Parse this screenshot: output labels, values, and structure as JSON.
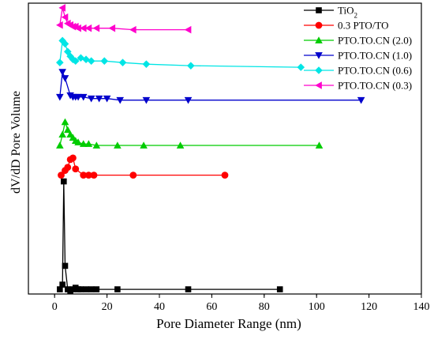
{
  "chart_data": {
    "type": "line",
    "xlabel": "Pore Diameter Range (nm)",
    "ylabel": "dV/dD Pore Volume",
    "xlim": [
      -10,
      140
    ],
    "xticks": [
      0,
      20,
      40,
      60,
      80,
      100,
      120,
      140
    ],
    "yticks": "none",
    "grid": false,
    "legend_position": "top-right",
    "series": [
      {
        "name": "TiO",
        "name_subscript": "2",
        "color": "#000000",
        "marker": "square",
        "x": [
          2,
          3,
          3.5,
          4,
          5,
          6,
          7,
          8,
          9,
          10,
          12,
          14,
          16,
          24,
          51,
          86
        ],
        "y": [
          0.03,
          0.06,
          0.72,
          0.18,
          0.03,
          0.02,
          0.03,
          0.04,
          0.03,
          0.03,
          0.03,
          0.03,
          0.03,
          0.03,
          0.03,
          0.03
        ]
      },
      {
        "name": "0.3 PTO/TO",
        "color": "#ff0000",
        "marker": "circle",
        "x": [
          2.5,
          4,
          5,
          6,
          7,
          8,
          11,
          13,
          15,
          30,
          65
        ],
        "y": [
          0.76,
          0.79,
          0.81,
          0.86,
          0.87,
          0.8,
          0.76,
          0.76,
          0.76,
          0.76,
          0.76
        ]
      },
      {
        "name": "PTO.TO.CN (2.0)",
        "color": "#00cc00",
        "marker": "triangle-up",
        "x": [
          2,
          3,
          4,
          5,
          6,
          7,
          8,
          9,
          11,
          13,
          16,
          24,
          34,
          48,
          101
        ],
        "y": [
          0.95,
          1.02,
          1.1,
          1.05,
          1.02,
          1.0,
          0.98,
          0.97,
          0.96,
          0.96,
          0.95,
          0.95,
          0.95,
          0.95,
          0.95
        ]
      },
      {
        "name": "PTO.TO.CN (1.0)",
        "color": "#0000cc",
        "marker": "triangle-down",
        "x": [
          2,
          3,
          4,
          6,
          7,
          8,
          9,
          11,
          14,
          17,
          20,
          25,
          35,
          51,
          117
        ],
        "y": [
          1.26,
          1.42,
          1.38,
          1.27,
          1.26,
          1.26,
          1.26,
          1.26,
          1.25,
          1.25,
          1.25,
          1.24,
          1.24,
          1.24,
          1.24
        ]
      },
      {
        "name": "PTO.TO.CN (0.6)",
        "color": "#00e5e5",
        "marker": "diamond",
        "x": [
          2,
          3,
          4,
          5,
          6,
          7,
          8,
          10,
          12,
          14,
          19,
          26,
          35,
          52,
          94
        ],
        "y": [
          1.48,
          1.62,
          1.6,
          1.55,
          1.52,
          1.5,
          1.49,
          1.51,
          1.5,
          1.49,
          1.49,
          1.48,
          1.47,
          1.46,
          1.45
        ]
      },
      {
        "name": "PTO.TO.CN (0.3)",
        "color": "#ff00cc",
        "marker": "triangle-left",
        "x": [
          2,
          3,
          4,
          5,
          6,
          7,
          8,
          9,
          11,
          13,
          16,
          22,
          30,
          51
        ],
        "y": [
          1.72,
          1.83,
          1.77,
          1.73,
          1.72,
          1.71,
          1.71,
          1.7,
          1.7,
          1.7,
          1.7,
          1.7,
          1.69,
          1.69
        ]
      }
    ]
  }
}
